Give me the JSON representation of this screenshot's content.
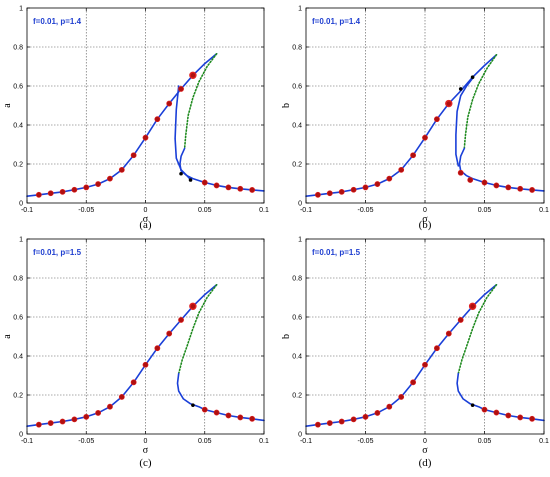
{
  "chart_data": [
    {
      "type": "line",
      "panel": "a",
      "caption": "(a)",
      "annotation": "f=0.01, p=1.4",
      "xlabel": "σ",
      "ylabel": "a",
      "xlim": [
        -0.1,
        0.1
      ],
      "ylim": [
        0,
        1
      ],
      "xticks": [
        "-0.1",
        "-0.05",
        "0",
        "0.05",
        "0.1"
      ],
      "yticks": [
        "0",
        "0.2",
        "0.4",
        "0.6",
        "0.8",
        "1"
      ],
      "grid": true,
      "series": [
        {
          "style": "solid-blue",
          "x": [
            -0.1,
            -0.09,
            -0.08,
            -0.07,
            -0.06,
            -0.05,
            -0.04,
            -0.03,
            -0.02,
            -0.01,
            0,
            0.01,
            0.02,
            0.03,
            0.04,
            0.05,
            0.06
          ],
          "y": [
            0.035,
            0.042,
            0.05,
            0.057,
            0.068,
            0.08,
            0.097,
            0.125,
            0.17,
            0.245,
            0.335,
            0.43,
            0.51,
            0.585,
            0.655,
            0.715,
            0.765
          ]
        },
        {
          "style": "dotted-green",
          "x": [
            0.06,
            0.052,
            0.045,
            0.04,
            0.036,
            0.034,
            0.033
          ],
          "y": [
            0.765,
            0.7,
            0.62,
            0.54,
            0.45,
            0.35,
            0.28
          ]
        },
        {
          "style": "solid-blue",
          "x": [
            0.033,
            0.03,
            0.029,
            0.03,
            0.035,
            0.04,
            0.05,
            0.06,
            0.07,
            0.08,
            0.09,
            0.1
          ],
          "y": [
            0.28,
            0.24,
            0.2,
            0.165,
            0.14,
            0.125,
            0.105,
            0.09,
            0.08,
            0.073,
            0.067,
            0.062
          ]
        },
        {
          "style": "solid-blue",
          "x": [
            0.028,
            0.026,
            0.025,
            0.026,
            0.03,
            0.035,
            0.038
          ],
          "y": [
            0.6,
            0.48,
            0.33,
            0.23,
            0.17,
            0.14,
            0.12
          ]
        },
        {
          "style": "markers-red",
          "x": [
            -0.09,
            -0.08,
            -0.07,
            -0.06,
            -0.05,
            -0.04,
            -0.03,
            -0.02,
            -0.01,
            0,
            0.01,
            0.02,
            0.03,
            0.04,
            0.05,
            0.06,
            0.07,
            0.08,
            0.09
          ],
          "y": [
            0.042,
            0.05,
            0.057,
            0.068,
            0.08,
            0.097,
            0.125,
            0.17,
            0.245,
            0.335,
            0.43,
            0.51,
            0.585,
            0.655,
            0.105,
            0.09,
            0.08,
            0.073,
            0.067
          ]
        },
        {
          "style": "markers-black",
          "x": [
            0.03,
            0.038
          ],
          "y": [
            0.15,
            0.118
          ]
        }
      ]
    },
    {
      "type": "line",
      "panel": "b",
      "caption": "(b)",
      "annotation": "f=0.01, p=1.4",
      "xlabel": "σ",
      "ylabel": "b",
      "xlim": [
        -0.1,
        0.1
      ],
      "ylim": [
        0,
        1
      ],
      "xticks": [
        "-0.1",
        "-0.05",
        "0",
        "0.05",
        "0.1"
      ],
      "yticks": [
        "0",
        "0.2",
        "0.4",
        "0.6",
        "0.8",
        "1"
      ],
      "grid": true,
      "series": [
        {
          "style": "solid-blue",
          "x": [
            -0.1,
            -0.09,
            -0.08,
            -0.07,
            -0.06,
            -0.05,
            -0.04,
            -0.03,
            -0.02,
            -0.01,
            0,
            0.01,
            0.02,
            0.03,
            0.04,
            0.05,
            0.06
          ],
          "y": [
            0.035,
            0.042,
            0.05,
            0.057,
            0.068,
            0.08,
            0.097,
            0.125,
            0.17,
            0.245,
            0.335,
            0.43,
            0.51,
            0.575,
            0.645,
            0.705,
            0.76
          ]
        },
        {
          "style": "dotted-green",
          "x": [
            0.06,
            0.052,
            0.045,
            0.04,
            0.036,
            0.034,
            0.033
          ],
          "y": [
            0.76,
            0.69,
            0.61,
            0.53,
            0.44,
            0.35,
            0.28
          ]
        },
        {
          "style": "solid-blue",
          "x": [
            0.033,
            0.03,
            0.029,
            0.03,
            0.035,
            0.04,
            0.05,
            0.06,
            0.07,
            0.08,
            0.09,
            0.1
          ],
          "y": [
            0.28,
            0.24,
            0.2,
            0.165,
            0.14,
            0.125,
            0.105,
            0.09,
            0.08,
            0.073,
            0.067,
            0.062
          ]
        },
        {
          "style": "solid-blue",
          "x": [
            0.04,
            0.035,
            0.03,
            0.027,
            0.026,
            0.026,
            0.028
          ],
          "y": [
            0.64,
            0.6,
            0.55,
            0.47,
            0.35,
            0.25,
            0.19
          ]
        },
        {
          "style": "markers-red",
          "x": [
            -0.09,
            -0.08,
            -0.07,
            -0.06,
            -0.05,
            -0.04,
            -0.03,
            -0.02,
            -0.01,
            0,
            0.01,
            0.02,
            0.03,
            0.038,
            0.05,
            0.06,
            0.07,
            0.08,
            0.09
          ],
          "y": [
            0.042,
            0.05,
            0.057,
            0.068,
            0.08,
            0.097,
            0.125,
            0.17,
            0.245,
            0.335,
            0.43,
            0.51,
            0.155,
            0.118,
            0.105,
            0.09,
            0.08,
            0.073,
            0.067
          ]
        },
        {
          "style": "markers-black",
          "x": [
            0.03,
            0.04
          ],
          "y": [
            0.585,
            0.645
          ]
        }
      ]
    },
    {
      "type": "line",
      "panel": "c",
      "caption": "(c)",
      "annotation": "f=0.01, p=1.5",
      "xlabel": "σ",
      "ylabel": "a",
      "xlim": [
        -0.1,
        0.1
      ],
      "ylim": [
        0,
        1
      ],
      "xticks": [
        "-0.1",
        "-0.05",
        "0",
        "0.05",
        "0.1"
      ],
      "yticks": [
        "0",
        "0.2",
        "0.4",
        "0.6",
        "0.8",
        "1"
      ],
      "grid": true,
      "series": [
        {
          "style": "solid-blue",
          "x": [
            -0.1,
            -0.09,
            -0.08,
            -0.07,
            -0.06,
            -0.05,
            -0.04,
            -0.03,
            -0.02,
            -0.01,
            0,
            0.01,
            0.02,
            0.03,
            0.04,
            0.05,
            0.06
          ],
          "y": [
            0.04,
            0.048,
            0.056,
            0.064,
            0.075,
            0.088,
            0.108,
            0.14,
            0.19,
            0.265,
            0.355,
            0.44,
            0.515,
            0.585,
            0.655,
            0.715,
            0.765
          ]
        },
        {
          "style": "dotted-green",
          "x": [
            0.06,
            0.052,
            0.045,
            0.04,
            0.035,
            0.031,
            0.028
          ],
          "y": [
            0.765,
            0.7,
            0.62,
            0.54,
            0.45,
            0.38,
            0.31
          ]
        },
        {
          "style": "solid-blue",
          "x": [
            0.028,
            0.027,
            0.028,
            0.032,
            0.038,
            0.045,
            0.05,
            0.06,
            0.07,
            0.08,
            0.09,
            0.1
          ],
          "y": [
            0.31,
            0.26,
            0.22,
            0.18,
            0.155,
            0.14,
            0.125,
            0.11,
            0.095,
            0.085,
            0.078,
            0.07
          ]
        },
        {
          "style": "markers-red",
          "x": [
            -0.09,
            -0.08,
            -0.07,
            -0.06,
            -0.05,
            -0.04,
            -0.03,
            -0.02,
            -0.01,
            0,
            0.01,
            0.02,
            0.03,
            0.04,
            0.05,
            0.06,
            0.07,
            0.08,
            0.09
          ],
          "y": [
            0.048,
            0.056,
            0.064,
            0.075,
            0.088,
            0.108,
            0.14,
            0.19,
            0.265,
            0.355,
            0.44,
            0.515,
            0.585,
            0.655,
            0.125,
            0.11,
            0.095,
            0.085,
            0.078
          ]
        },
        {
          "style": "markers-black",
          "x": [
            0.04
          ],
          "y": [
            0.148
          ]
        }
      ]
    },
    {
      "type": "line",
      "panel": "d",
      "caption": "(d)",
      "annotation": "f=0.01, p=1.5",
      "xlabel": "σ",
      "ylabel": "b",
      "xlim": [
        -0.1,
        0.1
      ],
      "ylim": [
        0,
        1
      ],
      "xticks": [
        "-0.1",
        "-0.05",
        "0",
        "0.05",
        "0.1"
      ],
      "yticks": [
        "0",
        "0.2",
        "0.4",
        "0.6",
        "0.8",
        "1"
      ],
      "grid": true,
      "series": [
        {
          "style": "solid-blue",
          "x": [
            -0.1,
            -0.09,
            -0.08,
            -0.07,
            -0.06,
            -0.05,
            -0.04,
            -0.03,
            -0.02,
            -0.01,
            0,
            0.01,
            0.02,
            0.03,
            0.04,
            0.05,
            0.06
          ],
          "y": [
            0.04,
            0.048,
            0.056,
            0.064,
            0.075,
            0.088,
            0.108,
            0.14,
            0.19,
            0.265,
            0.355,
            0.44,
            0.515,
            0.585,
            0.655,
            0.715,
            0.765
          ]
        },
        {
          "style": "dotted-green",
          "x": [
            0.06,
            0.052,
            0.045,
            0.04,
            0.035,
            0.031,
            0.028
          ],
          "y": [
            0.765,
            0.7,
            0.62,
            0.54,
            0.45,
            0.38,
            0.31
          ]
        },
        {
          "style": "solid-blue",
          "x": [
            0.028,
            0.027,
            0.028,
            0.032,
            0.038,
            0.045,
            0.05,
            0.06,
            0.07,
            0.08,
            0.09,
            0.1
          ],
          "y": [
            0.31,
            0.26,
            0.22,
            0.18,
            0.155,
            0.14,
            0.125,
            0.11,
            0.095,
            0.085,
            0.078,
            0.07
          ]
        },
        {
          "style": "markers-red",
          "x": [
            -0.09,
            -0.08,
            -0.07,
            -0.06,
            -0.05,
            -0.04,
            -0.03,
            -0.02,
            -0.01,
            0,
            0.01,
            0.02,
            0.03,
            0.04,
            0.05,
            0.06,
            0.07,
            0.08,
            0.09
          ],
          "y": [
            0.048,
            0.056,
            0.064,
            0.075,
            0.088,
            0.108,
            0.14,
            0.19,
            0.265,
            0.355,
            0.44,
            0.515,
            0.585,
            0.655,
            0.125,
            0.11,
            0.095,
            0.085,
            0.078
          ]
        },
        {
          "style": "markers-black",
          "x": [
            0.04
          ],
          "y": [
            0.148
          ]
        }
      ]
    }
  ],
  "colors": {
    "curve": "#1a3fd8",
    "unstable": "#1e8a1e",
    "marker_fill": "#b01010",
    "marker_edge": "#e02020",
    "black_marker": "#000000",
    "grid": "#555555",
    "annotation": "#1f3fd0"
  }
}
